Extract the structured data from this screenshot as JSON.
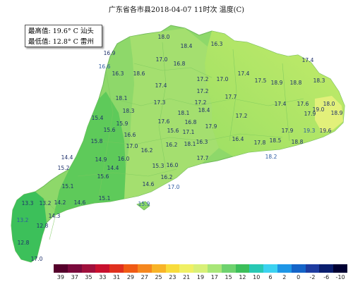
{
  "title": "广东省各市县2018-04-07 11时次 温度(C)",
  "stats": {
    "max_line": "最高值: 19.6° C 汕头",
    "min_line": "最低值: 12.8° C 雷州"
  },
  "stations": [
    {
      "v": "18.0"
    },
    {
      "v": "16.3"
    },
    {
      "v": "18.4"
    },
    {
      "v": "16.9"
    },
    {
      "v": "17.0"
    },
    {
      "v": "16.8"
    },
    {
      "v": "17.4"
    },
    {
      "v": "16.6"
    },
    {
      "v": "16.3"
    },
    {
      "v": "18.6"
    },
    {
      "v": "17.0"
    },
    {
      "v": "17.2"
    },
    {
      "v": "17.4"
    },
    {
      "v": "18.9"
    },
    {
      "v": "18.8"
    },
    {
      "v": "17.4"
    },
    {
      "v": "17.5"
    },
    {
      "v": "18.3"
    },
    {
      "v": "18.1"
    },
    {
      "v": "17.2"
    },
    {
      "v": "17.7"
    },
    {
      "v": "18.0"
    },
    {
      "v": "17.4"
    },
    {
      "v": "17.3"
    },
    {
      "v": "17.2"
    },
    {
      "v": "17.6"
    },
    {
      "v": "19.0"
    },
    {
      "v": "18.3"
    },
    {
      "v": "18.1"
    },
    {
      "v": "18.4"
    },
    {
      "v": "17.2"
    },
    {
      "v": "17.9"
    },
    {
      "v": "18.9"
    },
    {
      "v": "17.9"
    },
    {
      "v": "15.4"
    },
    {
      "v": "15.9"
    },
    {
      "v": "17.6"
    },
    {
      "v": "16.8"
    },
    {
      "v": "17.9"
    },
    {
      "v": "19.6"
    },
    {
      "v": "19.3"
    },
    {
      "v": "15.6"
    },
    {
      "v": "16.6"
    },
    {
      "v": "15.6"
    },
    {
      "v": "17.1"
    },
    {
      "v": "15.8"
    },
    {
      "v": "17.0"
    },
    {
      "v": "16.2"
    },
    {
      "v": "16.3"
    },
    {
      "v": "16.4"
    },
    {
      "v": "17.8"
    },
    {
      "v": "18.5"
    },
    {
      "v": "18.8"
    },
    {
      "v": "16.2"
    },
    {
      "v": "18.1"
    },
    {
      "v": "17.7"
    },
    {
      "v": "14.4"
    },
    {
      "v": "14.9"
    },
    {
      "v": "16.0"
    },
    {
      "v": "18.2"
    },
    {
      "v": "15.2"
    },
    {
      "v": "14.4"
    },
    {
      "v": "15.3"
    },
    {
      "v": "16.0"
    },
    {
      "v": "15.6"
    },
    {
      "v": "16.2"
    },
    {
      "v": "15.1"
    },
    {
      "v": "14.6"
    },
    {
      "v": "17.0"
    },
    {
      "v": "13.3"
    },
    {
      "v": "13.2"
    },
    {
      "v": "14.2"
    },
    {
      "v": "14.6"
    },
    {
      "v": "15.1"
    },
    {
      "v": "14.3"
    },
    {
      "v": "15.9"
    },
    {
      "v": "13.2"
    },
    {
      "v": "12.8"
    },
    {
      "v": "12.8"
    },
    {
      "v": "17.0"
    }
  ],
  "legend": {
    "labels": [
      "39",
      "37",
      "35",
      "33",
      "31",
      "29",
      "27",
      "25",
      "23",
      "21",
      "19",
      "17",
      "15",
      "12",
      "10",
      "6",
      "2",
      "0",
      "-2",
      "-6",
      "-10"
    ],
    "colors": [
      "#55002b",
      "#7a0a3c",
      "#a0103c",
      "#c8102e",
      "#e0301e",
      "#f05a14",
      "#f5871e",
      "#f8b428",
      "#f8dc3c",
      "#f0f064",
      "#d8f078",
      "#a8e678",
      "#6ed26e",
      "#3cbe5a",
      "#28c8b4",
      "#3cd2f0",
      "#1e96e6",
      "#1464c8",
      "#1e3ca0",
      "#0a1e6e",
      "#000032"
    ]
  }
}
